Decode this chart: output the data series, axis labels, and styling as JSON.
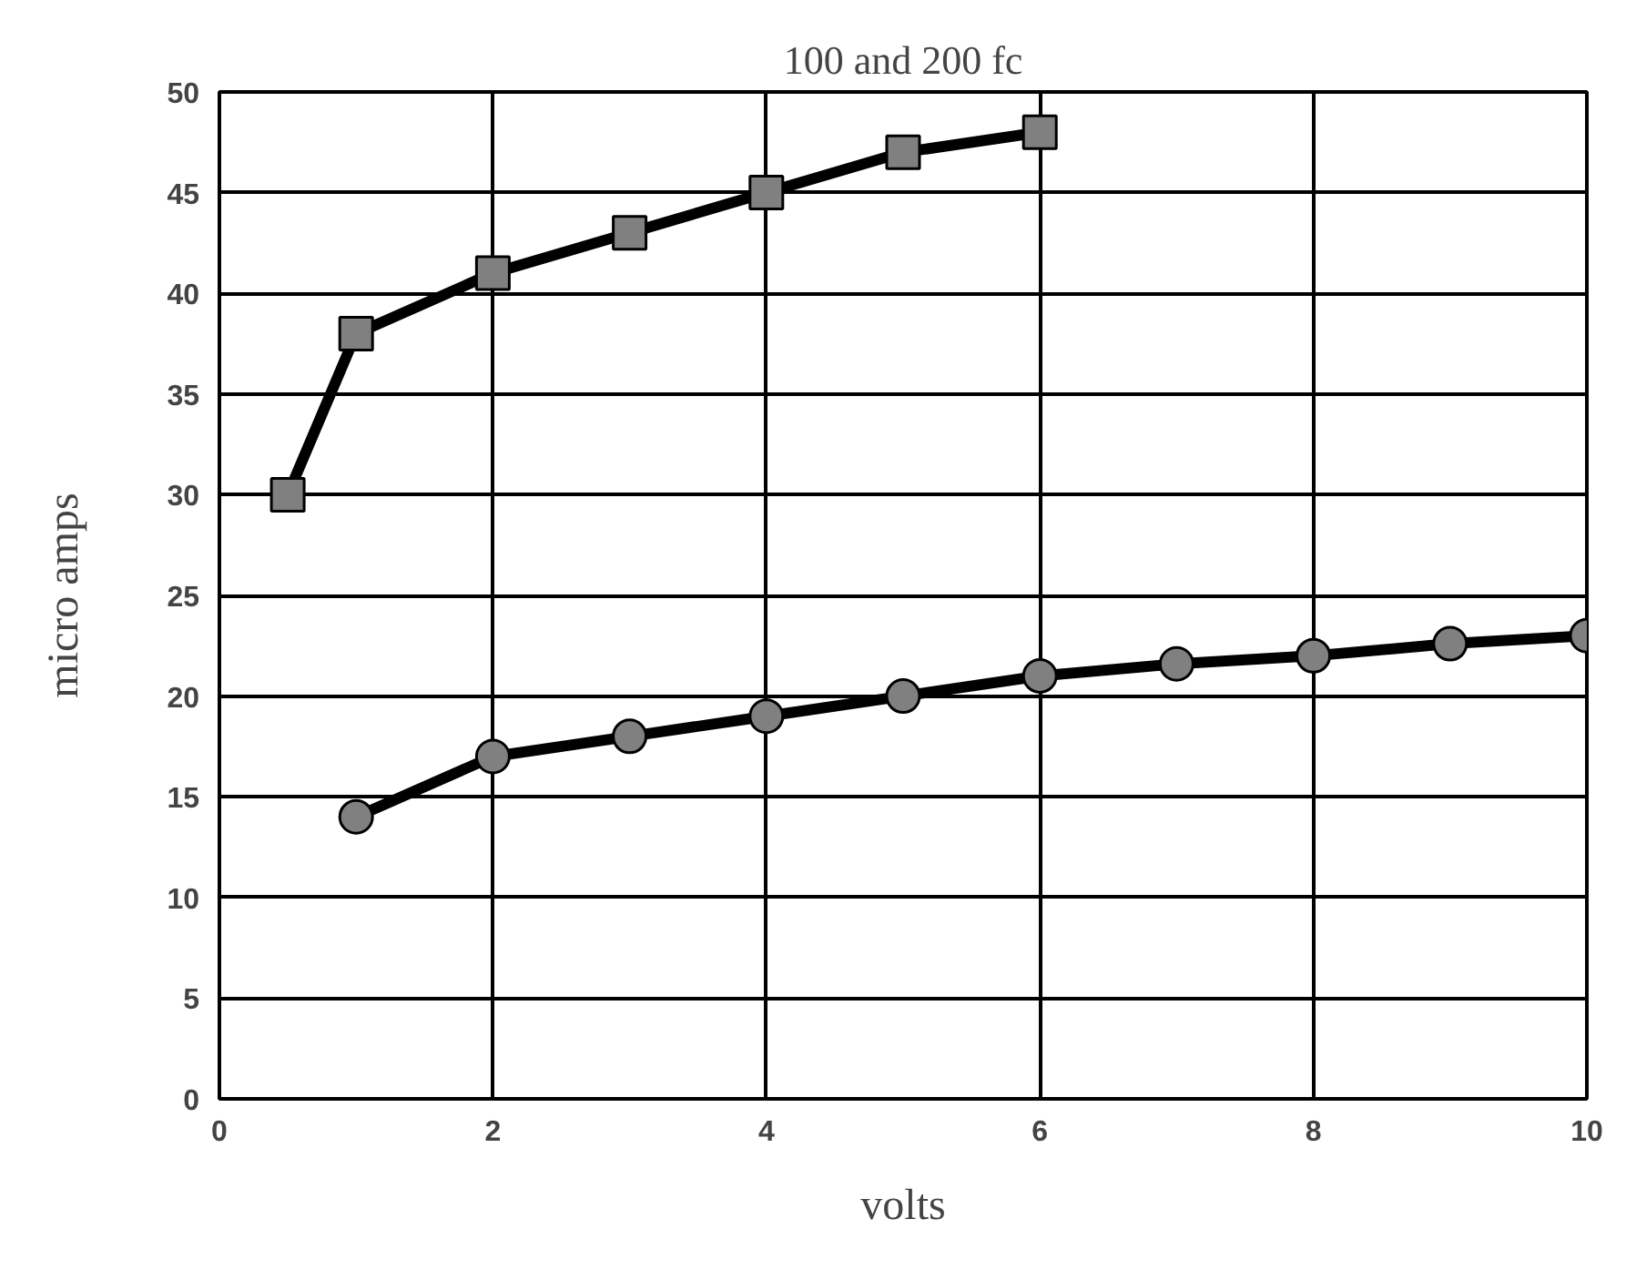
{
  "chart_data": {
    "type": "line",
    "title": "100 and 200 fc",
    "xlabel": "volts",
    "ylabel": "micro amps",
    "xlim": [
      0,
      10
    ],
    "xticks": [
      0,
      2,
      4,
      6,
      8,
      10
    ],
    "ylim": [
      0,
      50
    ],
    "yticks": [
      0,
      5,
      10,
      15,
      20,
      25,
      30,
      35,
      40,
      45,
      50
    ],
    "grid": true,
    "series": [
      {
        "color": "#000000",
        "marker": "square",
        "x": [
          0.5,
          1,
          2,
          3,
          4,
          5,
          6
        ],
        "values": [
          30,
          38,
          41,
          43,
          45,
          47,
          48
        ]
      },
      {
        "color": "#000000",
        "marker": "circle",
        "x": [
          1,
          2,
          3,
          4,
          5,
          6,
          7,
          8,
          9,
          10
        ],
        "values": [
          14,
          17,
          18,
          19,
          20,
          21,
          21.6,
          22,
          22.6,
          23
        ]
      }
    ]
  }
}
